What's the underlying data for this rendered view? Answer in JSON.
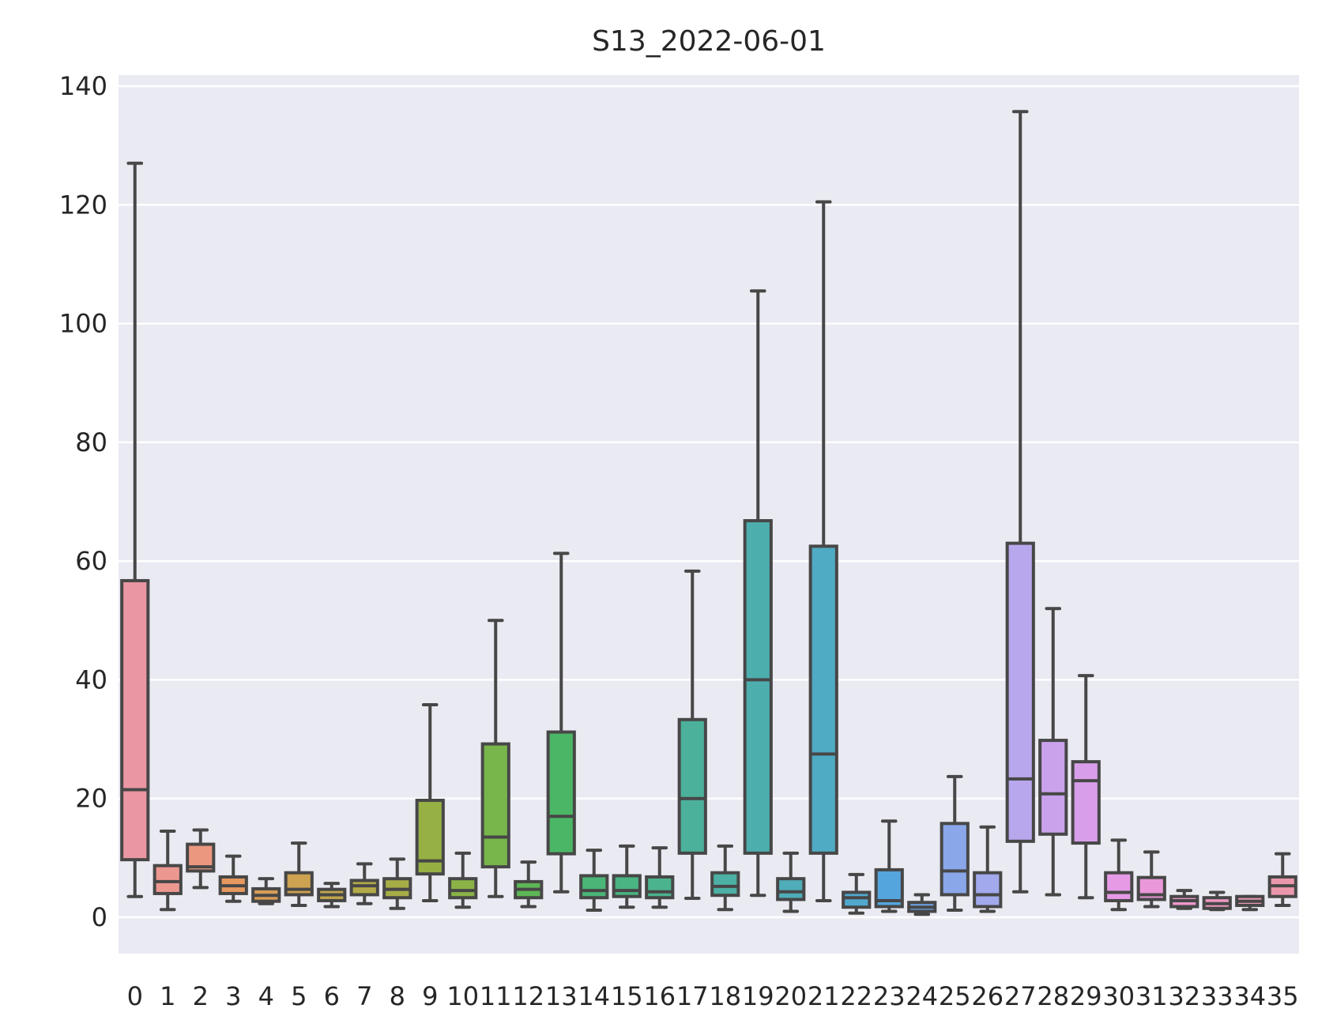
{
  "chart_data": {
    "type": "boxplot",
    "title": "S13_2022-06-01",
    "xlabel": "",
    "ylabel": "",
    "ylim": [
      -6,
      142
    ],
    "yticks": [
      0,
      20,
      40,
      60,
      80,
      100,
      120,
      140
    ],
    "grid": true,
    "legend": "none",
    "categories": [
      "0",
      "1",
      "2",
      "3",
      "4",
      "5",
      "6",
      "7",
      "8",
      "9",
      "10",
      "11",
      "12",
      "13",
      "14",
      "15",
      "16",
      "17",
      "18",
      "19",
      "20",
      "21",
      "22",
      "23",
      "24",
      "25",
      "26",
      "27",
      "28",
      "29",
      "30",
      "31",
      "32",
      "33",
      "34",
      "35"
    ],
    "series": [
      {
        "values": [
          {
            "whislo": 3.5,
            "q1": 9.7,
            "med": 21.5,
            "q3": 56.7,
            "whishi": 127.0,
            "color": "#ea96a3"
          },
          {
            "whislo": 1.3,
            "q1": 4.0,
            "med": 6.0,
            "q3": 8.7,
            "whishi": 14.5,
            "color": "#ec9891"
          },
          {
            "whislo": 5.0,
            "q1": 7.8,
            "med": 8.5,
            "q3": 12.3,
            "whishi": 14.7,
            "color": "#eb977f"
          },
          {
            "whislo": 2.7,
            "q1": 4.0,
            "med": 5.3,
            "q3": 6.8,
            "whishi": 10.3,
            "color": "#e5995f"
          },
          {
            "whislo": 2.3,
            "q1": 2.7,
            "med": 3.7,
            "q3": 4.8,
            "whishi": 6.5,
            "color": "#d99d58"
          },
          {
            "whislo": 2.0,
            "q1": 3.8,
            "med": 4.7,
            "q3": 7.5,
            "whishi": 12.5,
            "color": "#cda251"
          },
          {
            "whislo": 1.8,
            "q1": 2.8,
            "med": 3.8,
            "q3": 4.7,
            "whishi": 5.7,
            "color": "#bfa64b"
          },
          {
            "whislo": 2.3,
            "q1": 3.8,
            "med": 5.3,
            "q3": 6.2,
            "whishi": 9.0,
            "color": "#b3a948"
          },
          {
            "whislo": 1.5,
            "q1": 3.3,
            "med": 4.7,
            "q3": 6.5,
            "whishi": 9.8,
            "color": "#a6ad46"
          },
          {
            "whislo": 2.8,
            "q1": 7.3,
            "med": 9.5,
            "q3": 19.7,
            "whishi": 35.8,
            "color": "#96b043"
          },
          {
            "whislo": 1.7,
            "q1": 3.3,
            "med": 4.5,
            "q3": 6.5,
            "whishi": 10.8,
            "color": "#8ab346"
          },
          {
            "whislo": 3.5,
            "q1": 8.5,
            "med": 13.5,
            "q3": 29.2,
            "whishi": 50.0,
            "color": "#78b54b"
          },
          {
            "whislo": 1.8,
            "q1": 3.3,
            "med": 4.7,
            "q3": 6.0,
            "whishi": 9.3,
            "color": "#5eb756"
          },
          {
            "whislo": 4.3,
            "q1": 10.7,
            "med": 17.0,
            "q3": 31.2,
            "whishi": 61.3,
            "color": "#4bb766"
          },
          {
            "whislo": 1.2,
            "q1": 3.3,
            "med": 4.5,
            "q3": 7.0,
            "whishi": 11.3,
            "color": "#4ab576"
          },
          {
            "whislo": 1.7,
            "q1": 3.5,
            "med": 4.5,
            "q3": 7.0,
            "whishi": 12.0,
            "color": "#4ab482"
          },
          {
            "whislo": 1.7,
            "q1": 3.3,
            "med": 4.3,
            "q3": 6.8,
            "whishi": 11.7,
            "color": "#4bb38e"
          },
          {
            "whislo": 3.2,
            "q1": 10.8,
            "med": 20.0,
            "q3": 33.3,
            "whishi": 58.3,
            "color": "#4cb19a"
          },
          {
            "whislo": 1.3,
            "q1": 3.7,
            "med": 5.2,
            "q3": 7.5,
            "whishi": 12.0,
            "color": "#4cb0a4"
          },
          {
            "whislo": 3.7,
            "q1": 10.8,
            "med": 40.0,
            "q3": 66.8,
            "whishi": 105.5,
            "color": "#4daeae"
          },
          {
            "whislo": 1.0,
            "q1": 3.0,
            "med": 4.3,
            "q3": 6.5,
            "whishi": 10.8,
            "color": "#4eadb8"
          },
          {
            "whislo": 2.8,
            "q1": 10.8,
            "med": 27.5,
            "q3": 62.5,
            "whishi": 120.5,
            "color": "#4fabc3"
          },
          {
            "whislo": 0.7,
            "q1": 1.7,
            "med": 3.3,
            "q3": 4.2,
            "whishi": 7.2,
            "color": "#51a8cf"
          },
          {
            "whislo": 1.0,
            "q1": 1.8,
            "med": 2.8,
            "q3": 8.0,
            "whishi": 16.2,
            "color": "#54a5dd"
          },
          {
            "whislo": 0.5,
            "q1": 1.0,
            "med": 1.7,
            "q3": 2.5,
            "whishi": 3.8,
            "color": "#6ea3e5"
          },
          {
            "whislo": 1.2,
            "q1": 3.8,
            "med": 7.8,
            "q3": 15.8,
            "whishi": 23.7,
            "color": "#8aa7ea"
          },
          {
            "whislo": 1.0,
            "q1": 1.8,
            "med": 3.8,
            "q3": 7.5,
            "whishi": 15.2,
            "color": "#a2aaed"
          },
          {
            "whislo": 4.3,
            "q1": 12.8,
            "med": 23.3,
            "q3": 63.0,
            "whishi": 135.7,
            "color": "#b8a7ed"
          },
          {
            "whislo": 3.8,
            "q1": 14.0,
            "med": 20.8,
            "q3": 29.8,
            "whishi": 52.0,
            "color": "#c9a2ec"
          },
          {
            "whislo": 3.3,
            "q1": 12.5,
            "med": 23.0,
            "q3": 26.2,
            "whishi": 40.7,
            "color": "#d99eea"
          },
          {
            "whislo": 1.3,
            "q1": 2.8,
            "med": 4.2,
            "q3": 7.5,
            "whishi": 13.0,
            "color": "#e69ae6"
          },
          {
            "whislo": 1.8,
            "q1": 3.0,
            "med": 3.8,
            "q3": 6.7,
            "whishi": 11.0,
            "color": "#ea98d9"
          },
          {
            "whislo": 1.5,
            "q1": 1.8,
            "med": 2.8,
            "q3": 3.5,
            "whishi": 4.5,
            "color": "#ec98cc"
          },
          {
            "whislo": 1.3,
            "q1": 1.5,
            "med": 2.3,
            "q3": 3.3,
            "whishi": 4.2,
            "color": "#ec98c0"
          },
          {
            "whislo": 1.3,
            "q1": 2.0,
            "med": 2.7,
            "q3": 3.5,
            "whishi": 3.5,
            "color": "#eb98b5"
          },
          {
            "whislo": 2.0,
            "q1": 3.5,
            "med": 5.3,
            "q3": 6.8,
            "whishi": 10.7,
            "color": "#ea97ab"
          }
        ]
      }
    ]
  }
}
